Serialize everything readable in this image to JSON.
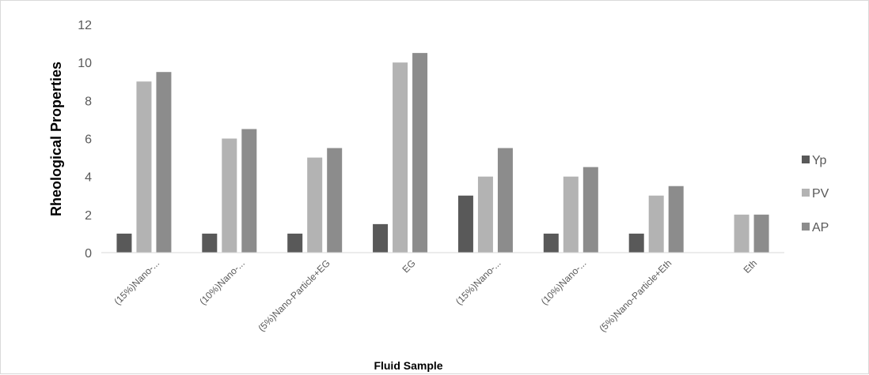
{
  "chart_data": {
    "type": "bar",
    "title": "",
    "xlabel": "Fluid Sample",
    "ylabel": "Rheological Properties",
    "categories": [
      "(15%)Nano-...",
      "(10%)Nano-...",
      "(5%)Nano-Particle+EG",
      "EG",
      "(15%)Nano-...",
      "(10%)Nano-...",
      "(5%)Nano-Particle+Eth",
      "Eth"
    ],
    "series": [
      {
        "name": "Yp",
        "color": "#595959",
        "values": [
          1,
          1,
          1,
          1.5,
          3,
          1,
          1,
          0
        ]
      },
      {
        "name": "PV",
        "color": "#b3b3b3",
        "values": [
          9,
          6,
          5,
          10,
          4,
          4,
          3,
          2
        ]
      },
      {
        "name": "AP",
        "color": "#8c8c8c",
        "values": [
          9.5,
          6.5,
          5.5,
          10.5,
          5.5,
          4.5,
          3.5,
          2
        ]
      }
    ],
    "ylim": [
      0,
      12
    ],
    "yticks": [
      0,
      2,
      4,
      6,
      8,
      10,
      12
    ],
    "grid": false,
    "legend": "right"
  }
}
